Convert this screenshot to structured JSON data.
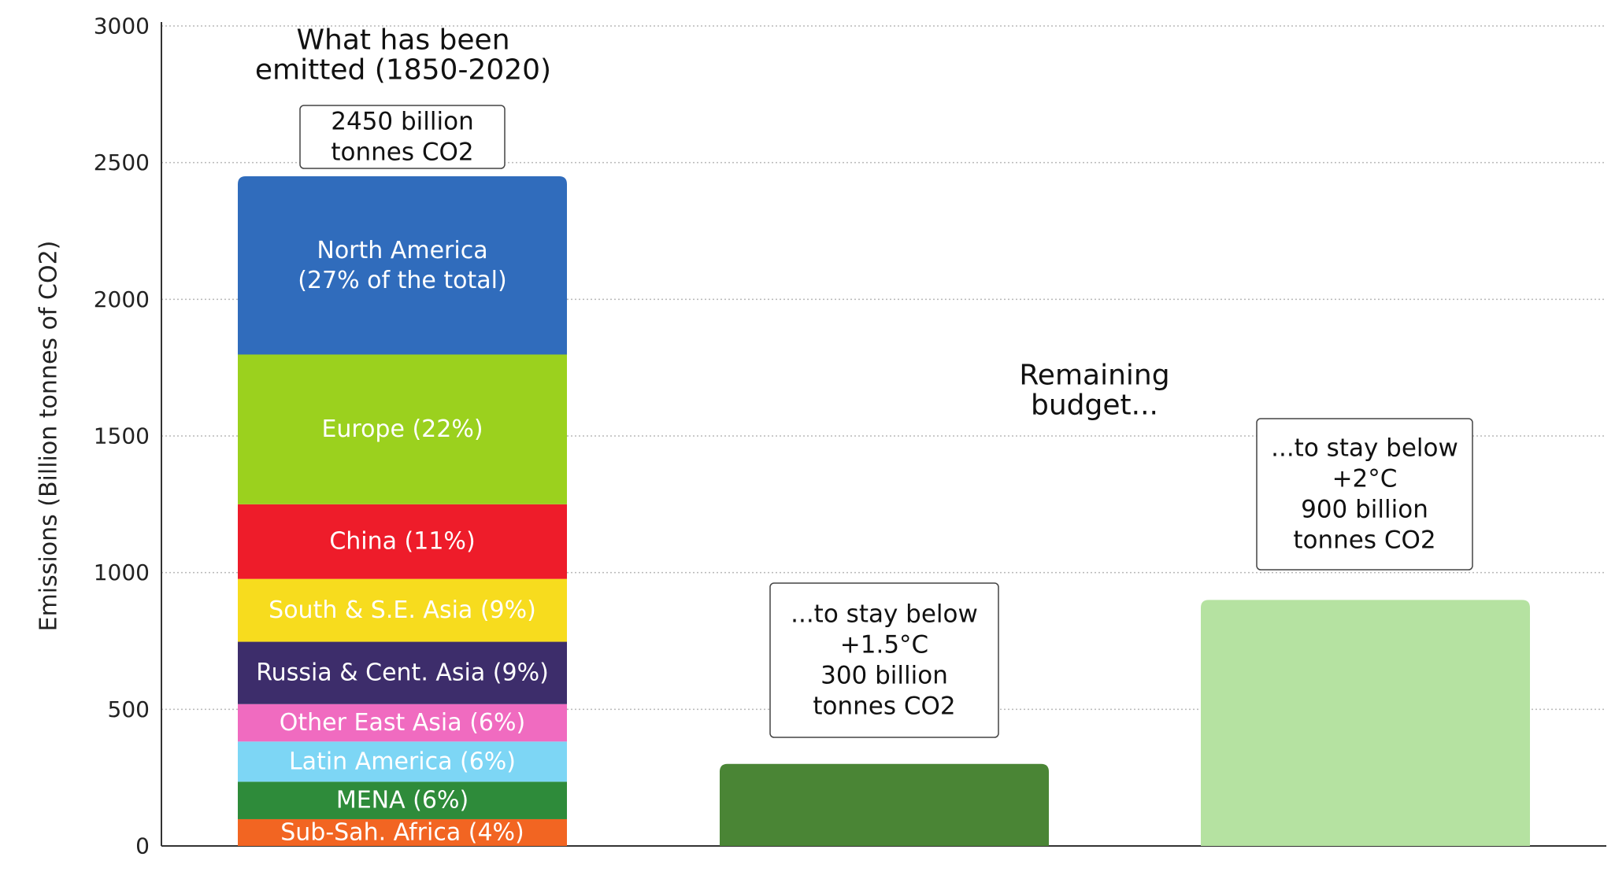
{
  "chart_data": {
    "type": "bar",
    "ylabel": "Emissions (Billion tonnes of CO2)",
    "ylim": [
      0,
      3000
    ],
    "yticks": [
      "0",
      "500",
      "1000",
      "1500",
      "2000",
      "2500",
      "3000"
    ],
    "grid": true,
    "emitted": {
      "heading": [
        "What has been",
        "emitted (1850-2020)"
      ],
      "total_box": [
        "2450 billion",
        "tonnes CO2"
      ],
      "total": 2450,
      "segments": [
        {
          "label": [
            "Sub-Sah. Africa (4%)"
          ],
          "value": 98,
          "color": "#f26522"
        },
        {
          "label": [
            "MENA (6%)"
          ],
          "value": 137,
          "color": "#2e8b3a"
        },
        {
          "label": [
            "Latin America (6%)"
          ],
          "value": 147,
          "color": "#7dd6f5"
        },
        {
          "label": [
            "Other East Asia (6%)"
          ],
          "value": 137,
          "color": "#f06bc0"
        },
        {
          "label": [
            "Russia & Cent. Asia (9%)"
          ],
          "value": 228,
          "color": "#3d2d6b"
        },
        {
          "label": [
            "South & S.E. Asia (9%)"
          ],
          "value": 230,
          "color": "#f7dc1e"
        },
        {
          "label": [
            "China (11%)"
          ],
          "value": 273,
          "color": "#ee1c2a"
        },
        {
          "label": [
            "Europe (22%)"
          ],
          "value": 548,
          "color": "#9bd11e"
        },
        {
          "label": [
            "North America",
            "(27% of the total)"
          ],
          "value": 652,
          "color": "#306cbc"
        }
      ]
    },
    "remaining_heading": [
      "Remaining",
      "budget..."
    ],
    "budgets": [
      {
        "value": 300,
        "color": "#4a8535",
        "box": [
          "...to stay below",
          "+1.5°C",
          "300 billion",
          "tonnes CO2"
        ]
      },
      {
        "value": 900,
        "color": "#b5e2a1",
        "box": [
          "...to stay below",
          "+2°C",
          "900 billion",
          "tonnes CO2"
        ]
      }
    ]
  }
}
